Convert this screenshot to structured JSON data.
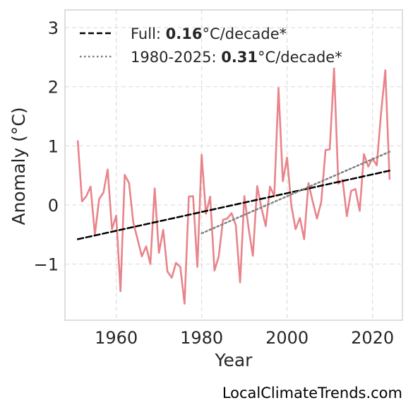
{
  "chart_data": {
    "type": "line",
    "xlabel": "Year",
    "ylabel": "Anomaly (°C)",
    "xlim": [
      1948,
      2027
    ],
    "ylim": [
      -1.95,
      3.3
    ],
    "xticks": [
      1960,
      1980,
      2000,
      2020
    ],
    "yticks": [
      -1,
      0,
      1,
      2,
      3
    ],
    "ytick_labels": [
      "−1",
      "0",
      "1",
      "2",
      "3"
    ],
    "grid": true,
    "legend_position": "top-left",
    "series": [
      {
        "role": "anomaly",
        "color": "#e8848a",
        "x": [
          1951,
          1952,
          1953,
          1954,
          1955,
          1956,
          1957,
          1958,
          1959,
          1960,
          1961,
          1962,
          1963,
          1964,
          1965,
          1966,
          1967,
          1968,
          1969,
          1970,
          1971,
          1972,
          1973,
          1974,
          1975,
          1976,
          1977,
          1978,
          1979,
          1980,
          1981,
          1982,
          1983,
          1984,
          1985,
          1986,
          1987,
          1988,
          1989,
          1990,
          1991,
          1992,
          1993,
          1994,
          1995,
          1996,
          1997,
          1998,
          1999,
          2000,
          2001,
          2002,
          2003,
          2004,
          2005,
          2006,
          2007,
          2008,
          2009,
          2010,
          2011,
          2012,
          2013,
          2014,
          2015,
          2016,
          2017,
          2018,
          2019,
          2020,
          2021,
          2022,
          2023,
          2024
        ],
        "y": [
          1.08,
          0.06,
          0.15,
          0.31,
          -0.5,
          0.1,
          0.21,
          0.6,
          -0.41,
          -0.18,
          -1.46,
          0.51,
          0.37,
          -0.3,
          -0.58,
          -0.87,
          -0.7,
          -1.0,
          0.28,
          -0.81,
          -0.42,
          -1.13,
          -1.23,
          -0.98,
          -1.05,
          -1.67,
          0.14,
          0.15,
          -1.05,
          0.85,
          -0.15,
          0.14,
          -1.11,
          -0.87,
          -0.25,
          -0.23,
          -0.14,
          -0.34,
          -1.31,
          0.15,
          -0.4,
          -0.86,
          0.32,
          -0.05,
          -0.36,
          0.31,
          0.15,
          1.98,
          0.4,
          0.8,
          -0.01,
          -0.41,
          -0.22,
          -0.58,
          0.37,
          0.06,
          -0.23,
          0.05,
          0.93,
          0.94,
          2.31,
          0.36,
          0.42,
          -0.19,
          0.24,
          0.27,
          -0.1,
          0.86,
          0.65,
          0.79,
          0.67,
          1.55,
          2.28,
          0.44
        ]
      },
      {
        "role": "trend-full",
        "color": "#000000",
        "x": [
          1951,
          2024
        ],
        "y": [
          -0.58,
          0.58
        ]
      },
      {
        "role": "trend-recent",
        "color": "#808080",
        "x": [
          1980,
          2024
        ],
        "y": [
          -0.48,
          0.9
        ]
      }
    ],
    "legend": [
      {
        "prefix": "Full: ",
        "value": "0.16",
        "suffix": "°C/decade*"
      },
      {
        "prefix": "1980-2025: ",
        "value": "0.31",
        "suffix": "°C/decade*"
      }
    ]
  },
  "watermark": "LocalClimateTrends.com"
}
